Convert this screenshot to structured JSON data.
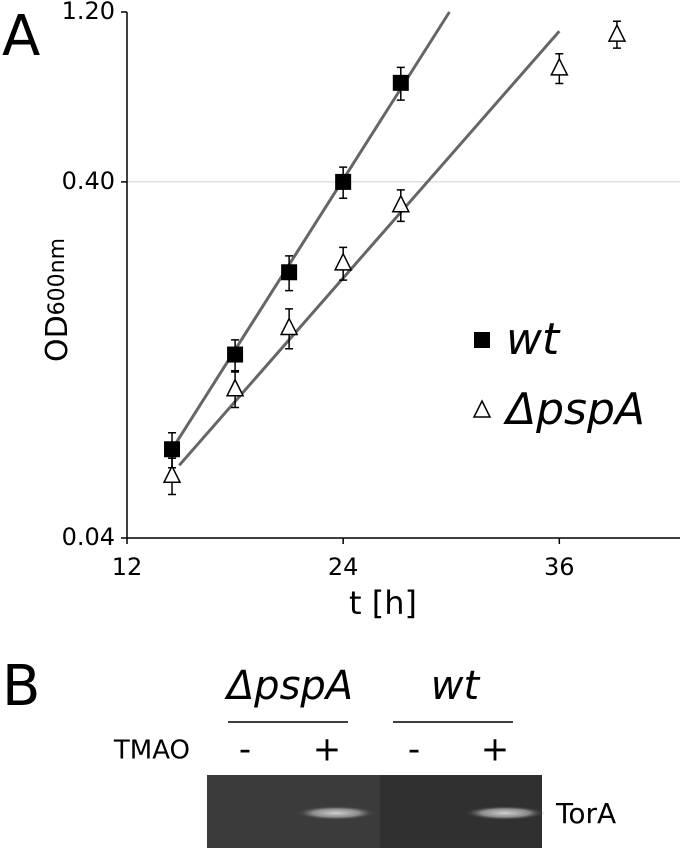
{
  "chart_data": {
    "type": "scatter",
    "panel_label": "A",
    "xlabel": "t [h]",
    "ylabel": "OD",
    "ylabel_sub": "600nm",
    "xlim": [
      12,
      42.7
    ],
    "ylim": [
      0.04,
      1.2
    ],
    "log_y": true,
    "xticks": [
      12,
      24,
      36
    ],
    "yticks": [
      0.04,
      {
        "value": 0.4,
        "label": "0.40"
      },
      {
        "value": 1.2,
        "label": "1.20"
      }
    ],
    "grid": true,
    "legend": "center right",
    "series": [
      {
        "name": "wt",
        "marker": "square",
        "color": "#000000",
        "x": [
          14.5,
          18,
          21,
          24,
          27.2
        ],
        "values": [
          0.071,
          0.131,
          0.223,
          0.4,
          0.759
        ],
        "errors": [
          0.008,
          0.013,
          0.025,
          0.04,
          0.08
        ],
        "fit": {
          "color": "#666666",
          "x": [
            14.5,
            29.9
          ],
          "values": [
            0.071,
            1.2
          ]
        }
      },
      {
        "name": "ΔpspA",
        "marker": "triangle",
        "color": "#000000",
        "x": [
          14.5,
          18,
          21,
          24,
          27.2,
          36,
          39.2
        ],
        "values": [
          0.06,
          0.105,
          0.156,
          0.237,
          0.345,
          0.836,
          1.04
        ],
        "errors": [
          0.007,
          0.012,
          0.02,
          0.025,
          0.035,
          0.08,
          0.09
        ],
        "fit": {
          "color": "#666666",
          "x": [
            14.9,
            36
          ],
          "values": [
            0.064,
            1.06
          ]
        }
      }
    ]
  },
  "panel_b": {
    "label": "B",
    "groups": [
      "ΔpspA",
      "wt"
    ],
    "treatment": "TMAO",
    "lanes": [
      "-",
      "+",
      "-",
      "+"
    ],
    "band": "TorA"
  }
}
